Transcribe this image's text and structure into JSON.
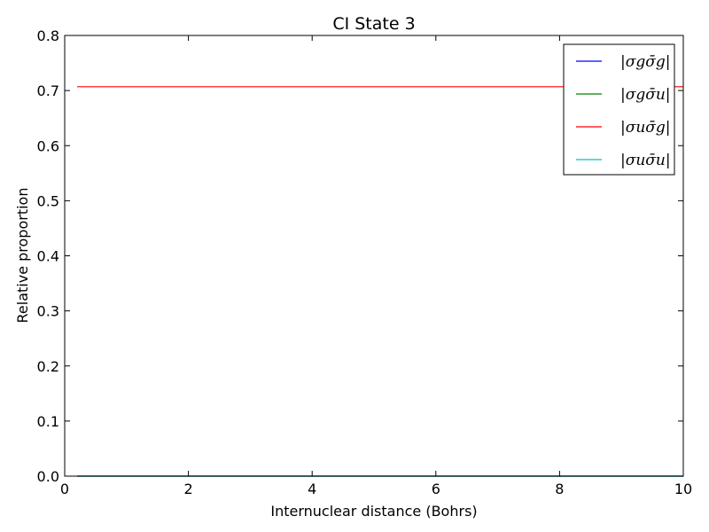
{
  "chart_data": {
    "type": "line",
    "title": "CI State 3",
    "xlabel": "Internuclear distance (Bohrs)",
    "ylabel": "Relative proportion",
    "xlim": [
      0,
      10
    ],
    "ylim": [
      0,
      0.8
    ],
    "xticks": [
      0,
      2,
      4,
      6,
      8,
      10
    ],
    "yticks": [
      0.0,
      0.1,
      0.2,
      0.3,
      0.4,
      0.5,
      0.6,
      0.7,
      0.8
    ],
    "grid": false,
    "legend_position": "top-right",
    "series": [
      {
        "name": "|σgσ̄g|",
        "color": "#0000ff",
        "x": [
          0.2,
          10
        ],
        "y": [
          0.0,
          0.0
        ]
      },
      {
        "name": "|σgσ̄u|",
        "color": "#008000",
        "x": [
          0.2,
          10
        ],
        "y": [
          0.0,
          0.0
        ]
      },
      {
        "name": "|σuσ̄g|",
        "color": "#ff0000",
        "x": [
          0.2,
          10
        ],
        "y": [
          0.707,
          0.707
        ]
      },
      {
        "name": "|σuσ̄u|",
        "color": "#00bfbf",
        "x": [
          0.2,
          10
        ],
        "y": [
          0.0,
          0.0
        ]
      }
    ]
  }
}
